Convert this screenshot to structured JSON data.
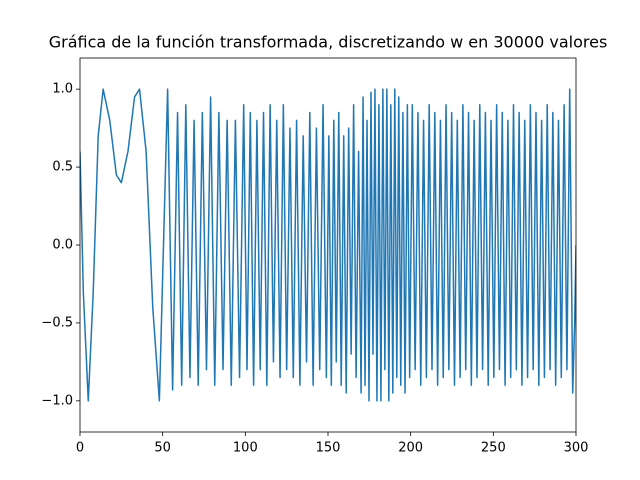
{
  "chart_data": {
    "type": "line",
    "title": "Gráfica de la función transformada, discretizando w en 30000 valores",
    "color": "#1f77b4",
    "xlim": [
      0,
      300
    ],
    "ylim": [
      -1.2,
      1.2
    ],
    "xticks": [
      0,
      50,
      100,
      150,
      200,
      250,
      300
    ],
    "yticks": [
      {
        "value": -1,
        "label": "−1.0"
      },
      {
        "value": -0.5,
        "label": "−0.5"
      },
      {
        "value": 0,
        "label": "0.0"
      },
      0.5,
      {
        "value": 1,
        "label": "1.0"
      }
    ],
    "grid": false,
    "x": [
      0,
      2,
      5,
      8,
      11,
      14,
      18,
      22,
      25,
      29,
      33,
      36,
      40,
      44,
      48,
      50.5,
      53,
      56,
      59,
      61.5,
      64,
      66.5,
      69,
      71.5,
      74,
      76.5,
      79,
      81.5,
      84,
      86.5,
      89,
      91.5,
      94,
      96.5,
      99,
      101,
      103,
      105,
      107,
      109,
      111,
      113,
      115,
      117,
      119,
      121,
      123,
      125,
      127,
      129,
      131,
      133,
      135,
      137,
      139,
      141,
      143,
      145,
      147,
      149,
      150.5,
      152,
      153.5,
      155,
      156.5,
      158,
      159.5,
      161,
      162.5,
      164,
      165.5,
      167,
      168.5,
      170,
      171.2,
      172.4,
      173.6,
      174.8,
      176,
      177.2,
      178.4,
      179.6,
      180.8,
      182,
      183.2,
      184.4,
      185.6,
      186.8,
      188,
      189.2,
      190.4,
      191.6,
      192.8,
      194,
      195.3,
      196.6,
      198,
      199.4,
      201,
      202.7,
      204.4,
      206.1,
      207.8,
      209.5,
      211.2,
      212.9,
      214.6,
      216.3,
      218,
      219.7,
      221.4,
      223.1,
      224.8,
      226.5,
      228.2,
      229.9,
      231.6,
      233.3,
      235,
      236.7,
      238.4,
      240.1,
      241.8,
      243.5,
      245.2,
      246.9,
      248.6,
      250.3,
      252,
      253.7,
      255.4,
      257.1,
      258.8,
      260.5,
      262.2,
      263.9,
      265.6,
      267.3,
      269,
      270.7,
      272.4,
      274.1,
      275.8,
      277.5,
      279.2,
      280.9,
      282.6,
      284.3,
      286,
      287.7,
      289.4,
      291.1,
      292.8,
      294.5,
      296.2,
      298,
      299.2,
      300
    ],
    "values": [
      0.6,
      -0.3,
      -1,
      -0.3,
      0.7,
      1,
      0.8,
      0.45,
      0.4,
      0.6,
      0.95,
      1,
      0.6,
      -0.4,
      -1,
      0,
      1,
      -0.93,
      0.85,
      -0.9,
      0.9,
      -0.85,
      0.8,
      -0.9,
      0.85,
      -0.8,
      0.95,
      -0.9,
      0.85,
      -0.8,
      0.8,
      -0.9,
      0.8,
      -0.85,
      0.9,
      -0.8,
      0.85,
      -0.9,
      0.8,
      -0.8,
      0.85,
      -0.9,
      0.9,
      -0.75,
      0.8,
      -0.85,
      0.9,
      -0.8,
      0.75,
      -0.85,
      0.8,
      -0.9,
      0.7,
      -0.75,
      0.85,
      -0.9,
      0.75,
      -0.8,
      0.9,
      -0.85,
      0.7,
      -0.9,
      0.8,
      -0.75,
      0.85,
      -0.9,
      0.7,
      -0.95,
      0.75,
      -0.7,
      0.9,
      -0.85,
      0.6,
      -0.95,
      0.95,
      -0.9,
      0.8,
      -1,
      0.98,
      -0.7,
      1,
      -1,
      0.9,
      -1,
      1,
      -0.8,
      1,
      -1,
      0.9,
      -0.95,
      1,
      -0.85,
      0.95,
      -0.9,
      0.85,
      -0.95,
      0.9,
      -0.85,
      0.9,
      -0.8,
      0.85,
      -0.9,
      0.8,
      -0.85,
      0.9,
      -0.8,
      0.85,
      -0.9,
      0.8,
      -0.85,
      0.9,
      -0.8,
      0.85,
      -0.9,
      0.8,
      -0.85,
      0.9,
      -0.8,
      0.85,
      -0.9,
      0.8,
      -0.85,
      0.9,
      -0.8,
      0.85,
      -0.9,
      0.8,
      -0.85,
      0.9,
      -0.8,
      0.85,
      -0.9,
      0.8,
      -0.85,
      0.9,
      -0.8,
      0.85,
      -0.9,
      0.8,
      -0.85,
      0.9,
      -0.8,
      0.85,
      -0.9,
      0.8,
      -0.85,
      0.9,
      -0.8,
      0.85,
      -0.9,
      0.8,
      -0.85,
      0.9,
      -0.8,
      1,
      -0.95,
      -0.5,
      0
    ]
  }
}
